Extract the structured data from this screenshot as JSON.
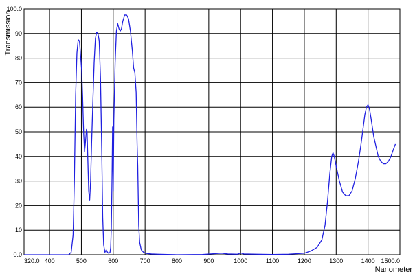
{
  "chart_data": {
    "type": "line",
    "title": "",
    "xlabel": "Nanometer",
    "ylabel": "Transmission",
    "xlim": [
      320,
      1500
    ],
    "ylim": [
      0,
      100
    ],
    "grid": true,
    "x_ticks": [
      320,
      400,
      500,
      600,
      700,
      800,
      900,
      1000,
      1100,
      1200,
      1300,
      1400,
      1500
    ],
    "x_tick_labels": [
      "320.0",
      "400",
      "500",
      "600",
      "700",
      "800",
      "900",
      "1000",
      "1100",
      "1200",
      "1300",
      "1400",
      "1500.0"
    ],
    "y_ticks": [
      0,
      10,
      20,
      30,
      40,
      50,
      60,
      70,
      80,
      90,
      100
    ],
    "y_tick_labels": [
      "0.0",
      "10",
      "20",
      "30",
      "40",
      "50",
      "60",
      "70",
      "80",
      "90",
      "100.0"
    ],
    "series": [
      {
        "color": "#2020e0",
        "points": [
          [
            320,
            0
          ],
          [
            460,
            0
          ],
          [
            468,
            1
          ],
          [
            474,
            8
          ],
          [
            478,
            30
          ],
          [
            482,
            65
          ],
          [
            486,
            82
          ],
          [
            490,
            87.5
          ],
          [
            494,
            87
          ],
          [
            498,
            80
          ],
          [
            501,
            75
          ],
          [
            504,
            64
          ],
          [
            507,
            50
          ],
          [
            510,
            42
          ],
          [
            513,
            46
          ],
          [
            516,
            51
          ],
          [
            518,
            50
          ],
          [
            520,
            40
          ],
          [
            523,
            26
          ],
          [
            526,
            22
          ],
          [
            529,
            30
          ],
          [
            532,
            45
          ],
          [
            536,
            62
          ],
          [
            540,
            78
          ],
          [
            544,
            88
          ],
          [
            548,
            90.5
          ],
          [
            552,
            90
          ],
          [
            556,
            87
          ],
          [
            560,
            72
          ],
          [
            564,
            42
          ],
          [
            567,
            15
          ],
          [
            570,
            4
          ],
          [
            574,
            1
          ],
          [
            578,
            2
          ],
          [
            582,
            1
          ],
          [
            586,
            0.5
          ],
          [
            590,
            1
          ],
          [
            592,
            3
          ],
          [
            594,
            11
          ],
          [
            596,
            28
          ],
          [
            598,
            52
          ],
          [
            600,
            26
          ],
          [
            602,
            55
          ],
          [
            606,
            78
          ],
          [
            610,
            91
          ],
          [
            614,
            94
          ],
          [
            618,
            92
          ],
          [
            622,
            91
          ],
          [
            626,
            92
          ],
          [
            630,
            95
          ],
          [
            636,
            97.5
          ],
          [
            642,
            97.5
          ],
          [
            648,
            96
          ],
          [
            654,
            91
          ],
          [
            660,
            83
          ],
          [
            664,
            76
          ],
          [
            668,
            74
          ],
          [
            672,
            66
          ],
          [
            675,
            45
          ],
          [
            677,
            36
          ],
          [
            680,
            12
          ],
          [
            683,
            5
          ],
          [
            688,
            2
          ],
          [
            695,
            1
          ],
          [
            705,
            0.5
          ],
          [
            720,
            0.3
          ],
          [
            740,
            0.2
          ],
          [
            770,
            0.1
          ],
          [
            800,
            0
          ],
          [
            880,
            0.1
          ],
          [
            940,
            0.6
          ],
          [
            960,
            0.3
          ],
          [
            990,
            0.2
          ],
          [
            1000,
            0.7
          ],
          [
            1010,
            0.3
          ],
          [
            1050,
            0.2
          ],
          [
            1100,
            0.1
          ],
          [
            1150,
            0.2
          ],
          [
            1200,
            0.6
          ],
          [
            1220,
            1.5
          ],
          [
            1240,
            3
          ],
          [
            1255,
            6
          ],
          [
            1265,
            12
          ],
          [
            1273,
            22
          ],
          [
            1280,
            33
          ],
          [
            1286,
            40
          ],
          [
            1290,
            41.5
          ],
          [
            1294,
            40
          ],
          [
            1300,
            36
          ],
          [
            1310,
            30
          ],
          [
            1320,
            25.5
          ],
          [
            1330,
            24
          ],
          [
            1340,
            24
          ],
          [
            1350,
            26
          ],
          [
            1360,
            31
          ],
          [
            1370,
            38
          ],
          [
            1378,
            45
          ],
          [
            1385,
            52
          ],
          [
            1390,
            57
          ],
          [
            1395,
            60
          ],
          [
            1400,
            61
          ],
          [
            1405,
            59
          ],
          [
            1410,
            55
          ],
          [
            1418,
            48
          ],
          [
            1425,
            44
          ],
          [
            1432,
            40
          ],
          [
            1440,
            38
          ],
          [
            1448,
            37
          ],
          [
            1456,
            37
          ],
          [
            1464,
            38
          ],
          [
            1472,
            40
          ],
          [
            1480,
            43
          ],
          [
            1486,
            45
          ]
        ]
      }
    ]
  }
}
